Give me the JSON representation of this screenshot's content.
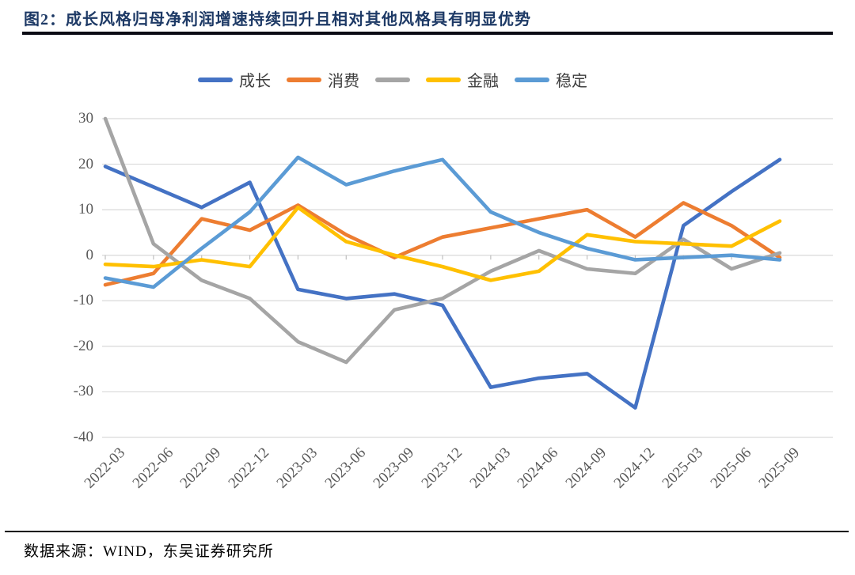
{
  "figure": {
    "title": "图2：成长风格归母净利润增速持续回升且相对其他风格具有明显优势",
    "source": "数据来源：WIND，东吴证券研究所"
  },
  "chart_data": {
    "type": "line",
    "title": "",
    "xlabel": "",
    "ylabel": "",
    "ylim": [
      -40,
      30
    ],
    "ytick_step": 10,
    "grid": "horizontal",
    "grid_color": "#D9D9D9",
    "axis_tick_color": "#BFBFBF",
    "axis_label_color": "#595959",
    "legend_position": "top",
    "categories": [
      "2022-03",
      "2022-06",
      "2022-09",
      "2022-12",
      "2023-03",
      "2023-06",
      "2023-09",
      "2023-12",
      "2024-03",
      "2024-06",
      "2024-09",
      "2024-12",
      "2025-03",
      "2025-06",
      "2025-09"
    ],
    "series": [
      {
        "name": "成长",
        "color": "#4472C4",
        "values": [
          19.5,
          15,
          10.5,
          16,
          -7.5,
          -9.5,
          -8.5,
          -11,
          -29,
          -27,
          -26,
          -33.5,
          6.5,
          14,
          21
        ]
      },
      {
        "name": "消费",
        "color": "#ED7D31",
        "values": [
          -6.5,
          -4,
          8,
          5.5,
          11,
          4.5,
          -0.5,
          4,
          6,
          8,
          10,
          4,
          11.5,
          6.5,
          -0.5
        ]
      },
      {
        "name": "",
        "color": "#A5A5A5",
        "values": [
          30,
          2.5,
          -5.5,
          -9.5,
          -19,
          -23.5,
          -12,
          -9.5,
          -3.5,
          1,
          -3,
          -4,
          3.5,
          -3,
          0.5
        ]
      },
      {
        "name": "金融",
        "color": "#FFC000",
        "values": [
          -2,
          -2.5,
          -1,
          -2.5,
          10.5,
          3,
          0,
          -2.5,
          -5.5,
          -3.5,
          4.5,
          3,
          2.5,
          2,
          7.5
        ]
      },
      {
        "name": "稳定",
        "color": "#5B9BD5",
        "values": [
          -5,
          -7,
          1.5,
          9.5,
          21.5,
          15.5,
          18.5,
          21,
          9.5,
          5,
          1.5,
          -1,
          -0.5,
          0,
          -1
        ]
      }
    ]
  }
}
